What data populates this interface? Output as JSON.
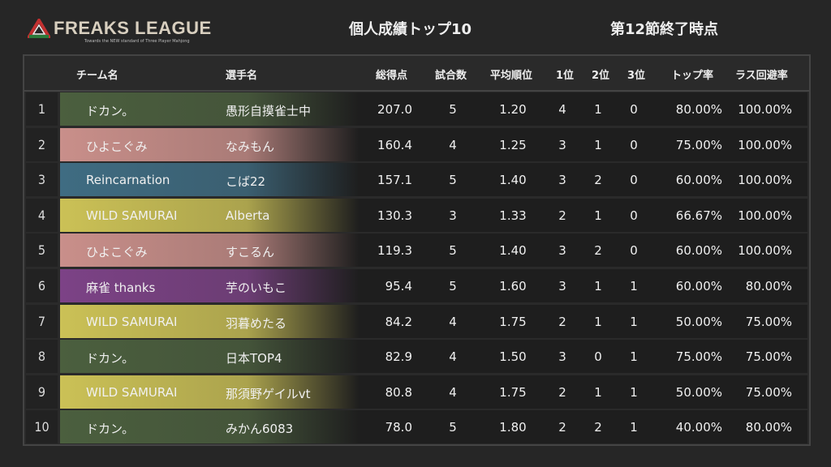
{
  "logo": {
    "name": "FREAKS LEAGUE",
    "tagline": "Towards the NEW standard of Three Player Mahjong"
  },
  "title": "個人成績トップ10",
  "subtitle": "第12節終了時点",
  "headers": [
    "チーム名",
    "選手名",
    "総得点",
    "試合数",
    "平均順位",
    "1位",
    "2位",
    "3位",
    "トップ率",
    "ラス回避率"
  ],
  "team_colors": {
    "ドカン。": "#4b5f3e",
    "ひよこぐみ": "#c98f8a",
    "Reincarnation": "#3f6c82",
    "WILD SAMURAI": "#cbc156",
    "麻雀 thanks": "#7c4286"
  },
  "rows": [
    {
      "rank": "1",
      "team": "ドカン。",
      "player": "愚形自摸雀士中",
      "total": "207.0",
      "games": "5",
      "avg": "1.20",
      "first": "4",
      "second": "1",
      "third": "0",
      "top": "80.00%",
      "avoid": "100.00%"
    },
    {
      "rank": "2",
      "team": "ひよこぐみ",
      "player": "なみもん",
      "total": "160.4",
      "games": "4",
      "avg": "1.25",
      "first": "3",
      "second": "1",
      "third": "0",
      "top": "75.00%",
      "avoid": "100.00%"
    },
    {
      "rank": "3",
      "team": "Reincarnation",
      "player": "こば22",
      "total": "157.1",
      "games": "5",
      "avg": "1.40",
      "first": "3",
      "second": "2",
      "third": "0",
      "top": "60.00%",
      "avoid": "100.00%"
    },
    {
      "rank": "4",
      "team": "WILD SAMURAI",
      "player": "Alberta",
      "total": "130.3",
      "games": "3",
      "avg": "1.33",
      "first": "2",
      "second": "1",
      "third": "0",
      "top": "66.67%",
      "avoid": "100.00%"
    },
    {
      "rank": "5",
      "team": "ひよこぐみ",
      "player": "すこるん",
      "total": "119.3",
      "games": "5",
      "avg": "1.40",
      "first": "3",
      "second": "2",
      "third": "0",
      "top": "60.00%",
      "avoid": "100.00%"
    },
    {
      "rank": "6",
      "team": "麻雀 thanks",
      "player": "芋のいもこ",
      "total": "95.4",
      "games": "5",
      "avg": "1.60",
      "first": "3",
      "second": "1",
      "third": "1",
      "top": "60.00%",
      "avoid": "80.00%"
    },
    {
      "rank": "7",
      "team": "WILD SAMURAI",
      "player": "羽暮めたる",
      "total": "84.2",
      "games": "4",
      "avg": "1.75",
      "first": "2",
      "second": "1",
      "third": "1",
      "top": "50.00%",
      "avoid": "75.00%"
    },
    {
      "rank": "8",
      "team": "ドカン。",
      "player": "日本TOP4",
      "total": "82.9",
      "games": "4",
      "avg": "1.50",
      "first": "3",
      "second": "0",
      "third": "1",
      "top": "75.00%",
      "avoid": "75.00%"
    },
    {
      "rank": "9",
      "team": "WILD SAMURAI",
      "player": "那須野ゲイルvt",
      "total": "80.8",
      "games": "4",
      "avg": "1.75",
      "first": "2",
      "second": "1",
      "third": "1",
      "top": "50.00%",
      "avoid": "75.00%"
    },
    {
      "rank": "10",
      "team": "ドカン。",
      "player": "みかん6083",
      "total": "78.0",
      "games": "5",
      "avg": "1.80",
      "first": "2",
      "second": "2",
      "third": "1",
      "top": "40.00%",
      "avoid": "80.00%"
    }
  ]
}
